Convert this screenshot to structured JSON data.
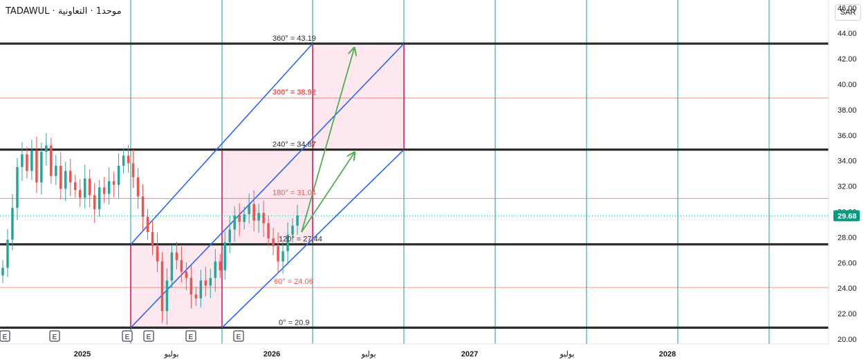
{
  "header": {
    "symbol": "TADAWUL · ﻣﻮﺣﺪ1 · ﺍﻟﺘﻌﺎﻭﻧﻴﺔ",
    "currency": "SAR"
  },
  "colors": {
    "candle_up": "#26a69a",
    "candle_down": "#ef5350",
    "major_level": "#2b2b2b",
    "minor_level": "#ef5350",
    "time_line": "#26a69a",
    "channel": "#2962ff",
    "box": "#e91e63",
    "arrow": "#4caf50",
    "price_badge": "#089981"
  },
  "chart_data": {
    "type": "candlestick",
    "ylim": [
      20,
      47
    ],
    "y_ticks": [
      "20.00",
      "22.00",
      "24.00",
      "26.00",
      "28.00",
      "30.00",
      "32.00",
      "34.00",
      "36.00",
      "38.00",
      "40.00",
      "42.00",
      "44.00",
      "46.00"
    ],
    "x_axis_labels": [
      "2025",
      "يوليو",
      "2026",
      "يوليو",
      "2027",
      "يوليو",
      "2028"
    ],
    "last_price": "29.68",
    "major_levels": [
      {
        "label": "0° = 20.9",
        "value": 20.9
      },
      {
        "label": "120° = 27.44",
        "value": 27.44
      },
      {
        "label": "240° = 34.87",
        "value": 34.87
      },
      {
        "label": "360° = 43.19",
        "value": 43.19
      }
    ],
    "minor_levels": [
      {
        "label": "60° = 24.06",
        "value": 24.06
      },
      {
        "label": "180° = 31.04",
        "value": 31.04
      },
      {
        "label": "300° = 38.92",
        "value": 38.92
      }
    ],
    "earnings_markers": [
      "E",
      "E",
      "E",
      "E",
      "E",
      "E"
    ],
    "price_series": [
      25.6,
      27.8,
      30.3,
      33.5,
      34.5,
      33.2,
      34.8,
      32.3,
      34.7,
      35.2,
      32.8,
      33.6,
      31.8,
      33.2,
      32.3,
      31.7,
      31.1,
      32.6,
      31.3,
      30.2,
      31.9,
      31.4,
      32.4,
      32.1,
      33.6,
      34.4,
      33.8,
      32.7,
      31.2,
      29.6,
      28.4,
      27.3,
      26.1,
      22.2,
      24.6,
      26.8,
      26.2,
      25.3,
      24.8,
      23.5,
      23.2,
      24.6,
      24.2,
      24.8,
      26.1,
      25.4,
      27.6,
      28.6,
      29.7,
      29.2,
      29.8,
      30.6,
      29.3,
      29.9,
      29.1,
      27.9,
      27.3,
      26.1,
      26.9,
      28.2,
      28.9,
      29.7
    ]
  }
}
